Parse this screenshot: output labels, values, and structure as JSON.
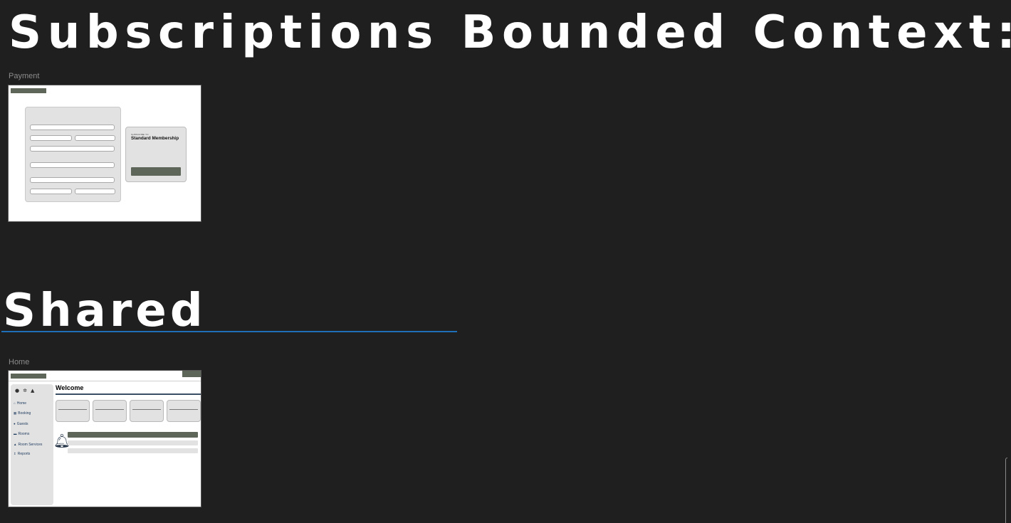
{
  "sections": {
    "subscriptions_title": "Subscriptions Bounded Context:",
    "shared_title": "Shared"
  },
  "colors": {
    "background": "#1f1f1f",
    "heading": "#ffffff",
    "underline_accent": "#1e6fb8",
    "wire_dark": "#5e6659",
    "wire_gray": "#e2e2e2"
  },
  "frames": {
    "payment": {
      "label": "Payment",
      "subscribe_kicker": "SUBSCRIBE TO",
      "plan_name": "Standard Membership"
    },
    "home": {
      "label": "Home",
      "welcome": "Welcome",
      "sidebar_icons": [
        "user-icon",
        "gear-icon",
        "bell-icon"
      ],
      "nav": [
        {
          "icon": "home-icon",
          "label": "Home"
        },
        {
          "icon": "calendar-icon",
          "label": "Booking"
        },
        {
          "icon": "users-icon",
          "label": "Guests"
        },
        {
          "icon": "bed-icon",
          "label": "Rooms"
        },
        {
          "icon": "bell-service-icon",
          "label": "Room Services"
        },
        {
          "icon": "chart-icon",
          "label": "Reports"
        }
      ]
    }
  }
}
